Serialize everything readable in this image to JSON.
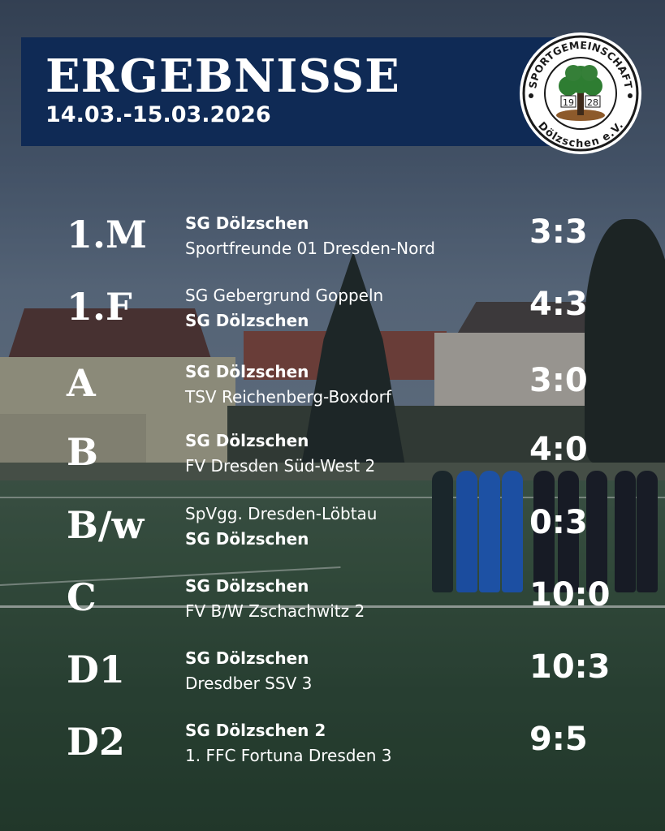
{
  "header": {
    "title": "ERGEBNISSE",
    "date": "14.03.-15.03.2026"
  },
  "crest": {
    "arc_top": "SPORTGEMEINSCHAFT",
    "arc_bottom": "Dölzschen e.V.",
    "year_left": "19",
    "year_right": "28"
  },
  "results": [
    {
      "code": "1.M",
      "home": "SG Dölzschen",
      "away": "Sportfreunde 01 Dresden-Nord",
      "bold": "home",
      "score": "3:3"
    },
    {
      "code": "1.F",
      "home": "SG Gebergrund Goppeln",
      "away": "SG Dölzschen",
      "bold": "away",
      "score": "4:3"
    },
    {
      "code": "A",
      "home": "SG Dölzschen",
      "away": "TSV Reichenberg-Boxdorf",
      "bold": "home",
      "score": "3:0"
    },
    {
      "code": "B",
      "home": "SG Dölzschen",
      "away": "FV Dresden Süd-West 2",
      "bold": "home",
      "score": "4:0"
    },
    {
      "code": "B/w",
      "home": "SpVgg. Dresden-Löbtau",
      "away": "SG Dölzschen",
      "bold": "away",
      "score": "0:3"
    },
    {
      "code": "C",
      "home": "SG Dölzschen",
      "away": "FV B/W Zschachwitz 2",
      "bold": "home",
      "score": "10:0"
    },
    {
      "code": "D1",
      "home": "SG Dölzschen",
      "away": "Dresdber SSV 3",
      "bold": "home",
      "score": "10:3"
    },
    {
      "code": "D2",
      "home": "SG Dölzschen 2",
      "away": "1. FFC Fortuna Dresden 3",
      "bold": "home",
      "score": "9:5"
    }
  ],
  "colors": {
    "header_bg": "#0f2a55",
    "text": "#ffffff",
    "crest_ring": "#1a1a1a",
    "crest_tree": "#2e7d32",
    "crest_soil": "#8d5a2b"
  }
}
